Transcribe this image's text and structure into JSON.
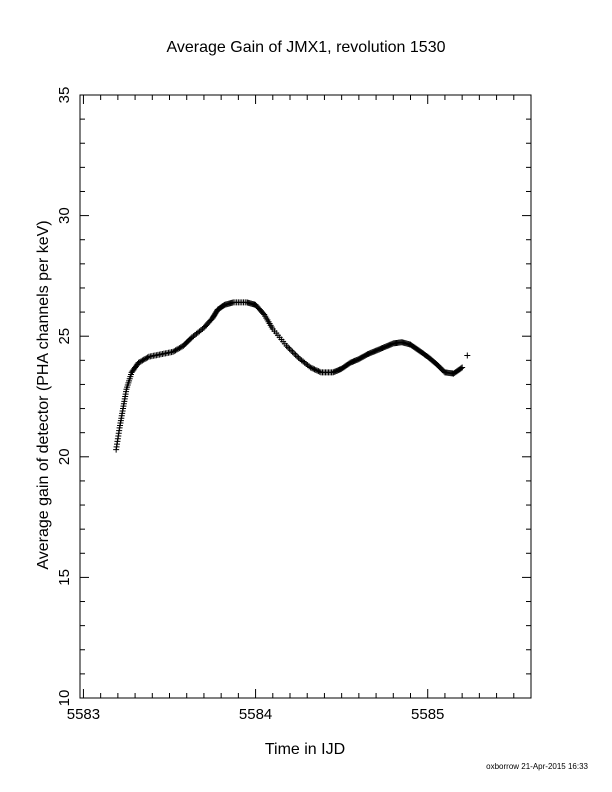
{
  "chart_data": {
    "type": "scatter",
    "title": "Average Gain of JMX1, revolution 1530",
    "xlabel": "Time in IJD",
    "ylabel": "Average gain of detector (PHA channels per keV)",
    "xlim": [
      5582.98,
      5585.6
    ],
    "ylim": [
      10,
      35
    ],
    "x_ticks": [
      5583,
      5584,
      5585
    ],
    "y_ticks": [
      10,
      15,
      20,
      25,
      30,
      35
    ],
    "x_minor_step": 0.1,
    "y_minor_step": 1,
    "grid": false,
    "legend": "none",
    "marker": "plus",
    "color": "#000000",
    "curve_points": [
      [
        5583.19,
        20.3
      ],
      [
        5583.21,
        21.2
      ],
      [
        5583.23,
        22.0
      ],
      [
        5583.25,
        22.8
      ],
      [
        5583.28,
        23.5
      ],
      [
        5583.32,
        23.9
      ],
      [
        5583.38,
        24.15
      ],
      [
        5583.45,
        24.25
      ],
      [
        5583.52,
        24.35
      ],
      [
        5583.58,
        24.6
      ],
      [
        5583.63,
        24.95
      ],
      [
        5583.7,
        25.35
      ],
      [
        5583.75,
        25.75
      ],
      [
        5583.78,
        26.1
      ],
      [
        5583.82,
        26.3
      ],
      [
        5583.87,
        26.4
      ],
      [
        5583.95,
        26.4
      ],
      [
        5584.0,
        26.3
      ],
      [
        5584.05,
        25.9
      ],
      [
        5584.1,
        25.3
      ],
      [
        5584.18,
        24.6
      ],
      [
        5584.25,
        24.1
      ],
      [
        5584.32,
        23.7
      ],
      [
        5584.38,
        23.5
      ],
      [
        5584.45,
        23.5
      ],
      [
        5584.5,
        23.65
      ],
      [
        5584.55,
        23.9
      ],
      [
        5584.6,
        24.05
      ],
      [
        5584.65,
        24.25
      ],
      [
        5584.7,
        24.4
      ],
      [
        5584.75,
        24.55
      ],
      [
        5584.8,
        24.7
      ],
      [
        5584.85,
        24.75
      ],
      [
        5584.9,
        24.65
      ],
      [
        5584.95,
        24.4
      ],
      [
        5585.0,
        24.15
      ],
      [
        5585.05,
        23.85
      ],
      [
        5585.1,
        23.5
      ],
      [
        5585.15,
        23.45
      ],
      [
        5585.2,
        23.7
      ]
    ],
    "isolated_points": [
      [
        5585.23,
        24.2
      ]
    ]
  },
  "footer": {
    "credit": "oxborrow 21-Apr-2015 16:33"
  }
}
